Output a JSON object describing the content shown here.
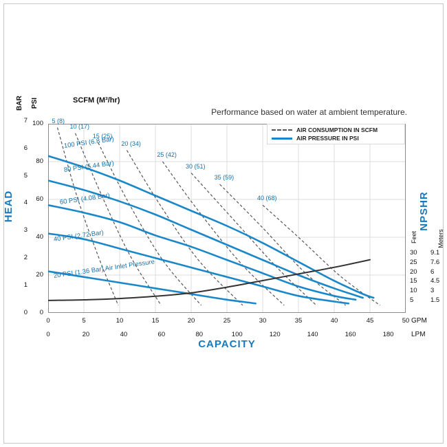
{
  "note": "Performance based on water at ambient temperature.",
  "legend": [
    {
      "style": "dashed",
      "label": "AIR CONSUMPTION IN SCFM"
    },
    {
      "style": "solid",
      "label": "AIR PRESSURE IN PSI"
    }
  ],
  "axes": {
    "scfm_title": "SCFM (M³/hr)",
    "head_label": "HEAD",
    "capacity_label": "CAPACITY",
    "npshr_label": "NPSHR",
    "bar_title": "BAR",
    "psi_title": "PSI",
    "feet_title": "Feet",
    "meters_title": "Meters",
    "gpm_unit": "GPM",
    "lpm_unit": "LPM",
    "bar_ticks": [
      7,
      6,
      5,
      4,
      3,
      2,
      1,
      0
    ],
    "psi_ticks": [
      100,
      80,
      60,
      40,
      20,
      0
    ],
    "feet_ticks": [
      30,
      25,
      20,
      15,
      10,
      5
    ],
    "meters_ticks": [
      "9.1",
      "7.6",
      "6",
      "4.5",
      "3",
      "1.5"
    ],
    "gpm_ticks": [
      0,
      5,
      10,
      15,
      20,
      25,
      30,
      35,
      40,
      45,
      50
    ],
    "lpm_ticks": [
      0,
      20,
      40,
      60,
      80,
      100,
      120,
      140,
      160,
      180
    ]
  },
  "chart_data": {
    "type": "line",
    "title": "Performance based on water at ambient temperature.",
    "grid": true,
    "legend_position": "top-right",
    "x_axis": {
      "label": "CAPACITY",
      "primary_unit": "GPM",
      "secondary_unit": "LPM",
      "gpm_range": [
        0,
        50
      ],
      "lpm_range": [
        0,
        180
      ]
    },
    "y_axis": {
      "label": "HEAD",
      "primary_unit": "PSI",
      "secondary_unit": "BAR",
      "psi_range": [
        0,
        100
      ],
      "bar_range": [
        0,
        7
      ]
    },
    "right_axis": {
      "label": "NPSHR",
      "units": [
        "Feet",
        "Meters"
      ],
      "feet_range": [
        5,
        30
      ],
      "meters_range": [
        1.5,
        9.1
      ]
    },
    "air_pressure_curves_psi_vs_gpm": [
      {
        "label": "100 PSI (6.8 Bar)",
        "air_inlet_psi": 100,
        "air_inlet_bar": 6.8,
        "label_at": [
          2.2,
          86
        ],
        "points": [
          [
            0,
            83
          ],
          [
            5,
            77
          ],
          [
            10,
            70
          ],
          [
            15,
            62
          ],
          [
            20,
            54
          ],
          [
            25,
            46
          ],
          [
            30,
            37
          ],
          [
            35,
            27
          ],
          [
            40,
            17
          ],
          [
            44,
            10
          ],
          [
            45.5,
            8
          ]
        ]
      },
      {
        "label": "80 PSI (5.44 Bar)",
        "air_inlet_psi": 80,
        "air_inlet_bar": 5.44,
        "label_at": [
          2.2,
          73
        ],
        "points": [
          [
            0,
            70
          ],
          [
            5,
            65
          ],
          [
            10,
            59
          ],
          [
            15,
            52
          ],
          [
            20,
            44
          ],
          [
            25,
            36
          ],
          [
            30,
            28
          ],
          [
            35,
            20
          ],
          [
            40,
            13
          ],
          [
            44,
            8
          ]
        ]
      },
      {
        "label": "60 PSI (4.08 Bar)",
        "air_inlet_psi": 60,
        "air_inlet_bar": 4.08,
        "label_at": [
          1.6,
          56
        ],
        "points": [
          [
            0,
            57
          ],
          [
            5,
            53
          ],
          [
            10,
            48
          ],
          [
            15,
            41
          ],
          [
            20,
            35
          ],
          [
            25,
            28
          ],
          [
            30,
            21
          ],
          [
            35,
            14
          ],
          [
            40,
            9
          ],
          [
            43,
            7
          ]
        ]
      },
      {
        "label": "40 PSI (2.72 Bar)",
        "air_inlet_psi": 40,
        "air_inlet_bar": 2.72,
        "label_at": [
          0.8,
          36.5
        ],
        "points": [
          [
            0,
            42
          ],
          [
            5,
            39
          ],
          [
            10,
            34
          ],
          [
            15,
            29
          ],
          [
            20,
            24
          ],
          [
            25,
            19
          ],
          [
            30,
            14
          ],
          [
            35,
            9
          ],
          [
            40,
            6
          ],
          [
            42,
            5
          ]
        ]
      },
      {
        "label": "20 PSI (1.36 Bar) Air Inlet Pressure",
        "air_inlet_psi": 20,
        "air_inlet_bar": 1.36,
        "label_at": [
          0.8,
          17
        ],
        "points": [
          [
            0,
            22
          ],
          [
            5,
            19
          ],
          [
            10,
            16
          ],
          [
            15,
            13
          ],
          [
            20,
            10
          ],
          [
            25,
            7
          ],
          [
            29,
            5
          ]
        ]
      }
    ],
    "air_consumption_curves_scfm": [
      {
        "label": "5 (8)",
        "scfm": 5,
        "m3hr": 8,
        "points": [
          [
            1.3,
            98
          ],
          [
            4,
            62
          ],
          [
            7,
            30
          ],
          [
            9.8,
            4
          ]
        ]
      },
      {
        "label": "10 (17)",
        "scfm": 10,
        "m3hr": 17,
        "points": [
          [
            3.8,
            95
          ],
          [
            7.5,
            62
          ],
          [
            11.5,
            30
          ],
          [
            15.8,
            4
          ]
        ]
      },
      {
        "label": "15 (25)",
        "scfm": 15,
        "m3hr": 25,
        "points": [
          [
            7,
            90
          ],
          [
            11,
            60
          ],
          [
            16,
            28
          ],
          [
            21.4,
            4
          ]
        ]
      },
      {
        "label": "20 (34)",
        "scfm": 20,
        "m3hr": 34,
        "points": [
          [
            11,
            86
          ],
          [
            15.5,
            58
          ],
          [
            21,
            28
          ],
          [
            27.2,
            4
          ]
        ]
      },
      {
        "label": "25 (42)",
        "scfm": 25,
        "m3hr": 42,
        "points": [
          [
            16,
            80
          ],
          [
            21,
            54
          ],
          [
            27,
            26
          ],
          [
            33,
            4
          ]
        ]
      },
      {
        "label": "30 (51)",
        "scfm": 30,
        "m3hr": 51,
        "points": [
          [
            20,
            74
          ],
          [
            26,
            49
          ],
          [
            32,
            24
          ],
          [
            37.5,
            4
          ]
        ]
      },
      {
        "label": "35 (59)",
        "scfm": 35,
        "m3hr": 59,
        "points": [
          [
            24,
            68
          ],
          [
            30,
            45
          ],
          [
            36,
            21
          ],
          [
            41.6,
            4
          ]
        ]
      },
      {
        "label": "40 (68)",
        "scfm": 40,
        "m3hr": 68,
        "points": [
          [
            30,
            57
          ],
          [
            35,
            40
          ],
          [
            41,
            19
          ],
          [
            46.4,
            4
          ]
        ]
      }
    ],
    "npshr_curve_feet_vs_gpm": {
      "points": [
        [
          0,
          5
        ],
        [
          5,
          5.3
        ],
        [
          10,
          6
        ],
        [
          15,
          7.2
        ],
        [
          20,
          9
        ],
        [
          25,
          12
        ],
        [
          30,
          15.5
        ],
        [
          35,
          19
        ],
        [
          40,
          22.5
        ],
        [
          45,
          26.5
        ]
      ]
    }
  },
  "colors": {
    "curve_blue": "#1a87c9",
    "label_blue": "#1572ad",
    "accent_blue": "#1779be",
    "dashed_gray": "#555555",
    "npshr_dark": "#333333",
    "grid_gray": "#dcdcdc"
  }
}
